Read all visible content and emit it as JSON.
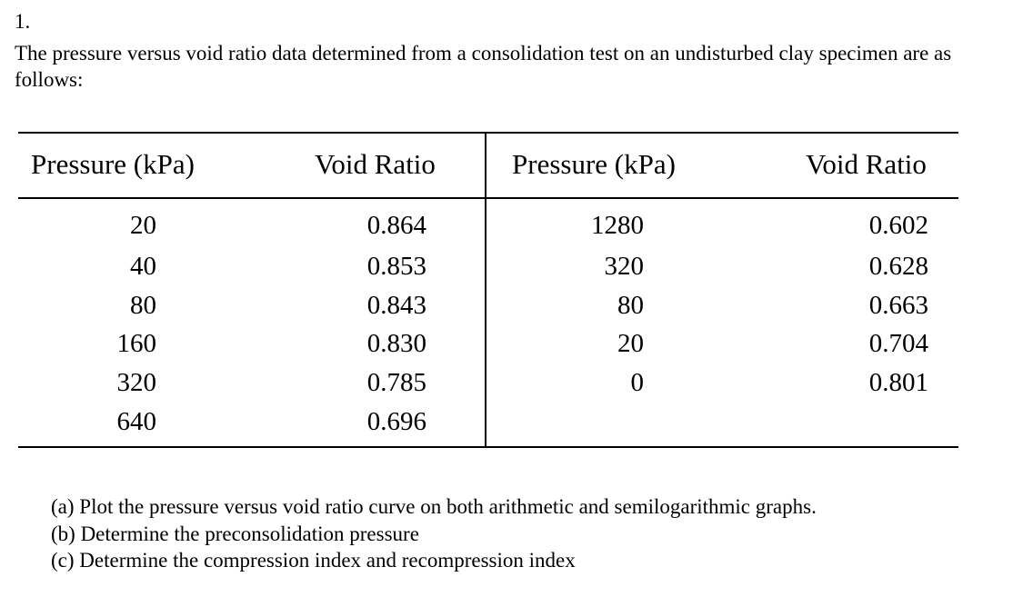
{
  "question": {
    "number": "1.",
    "intro": "The pressure versus void ratio data determined from a consolidation test on an undisturbed clay specimen are as follows:"
  },
  "table": {
    "headers": [
      "Pressure (kPa)",
      "Void Ratio",
      "Pressure (kPa)",
      "Void Ratio"
    ],
    "left_rows": [
      {
        "pressure": "20",
        "void_ratio": "0.864"
      },
      {
        "pressure": "40",
        "void_ratio": "0.853"
      },
      {
        "pressure": "80",
        "void_ratio": "0.843"
      },
      {
        "pressure": "160",
        "void_ratio": "0.830"
      },
      {
        "pressure": "320",
        "void_ratio": "0.785"
      },
      {
        "pressure": "640",
        "void_ratio": "0.696"
      }
    ],
    "right_rows": [
      {
        "pressure": "1280",
        "void_ratio": "0.602"
      },
      {
        "pressure": "320",
        "void_ratio": "0.628"
      },
      {
        "pressure": "80",
        "void_ratio": "0.663"
      },
      {
        "pressure": "20",
        "void_ratio": "0.704"
      },
      {
        "pressure": "0",
        "void_ratio": "0.801"
      }
    ]
  },
  "tasks": [
    "(a) Plot the pressure versus void ratio curve on both arithmetic and semilogarithmic graphs.",
    "(b) Determine the preconsolidation pressure",
    "(c) Determine the compression index and recompression index"
  ]
}
